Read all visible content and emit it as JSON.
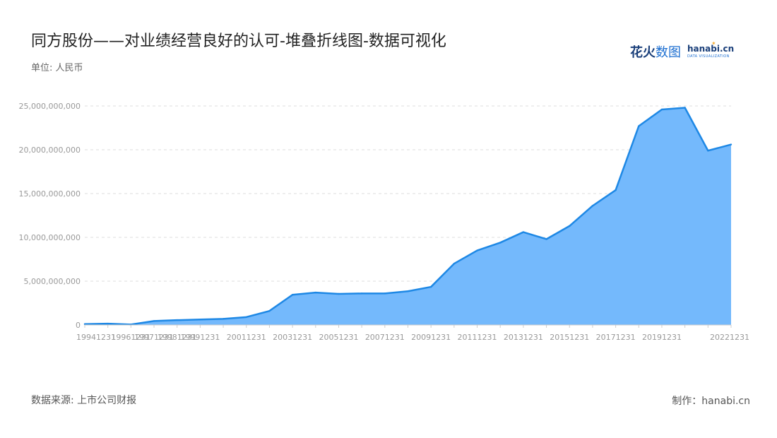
{
  "header": {
    "title": "同方股份——对业绩经营良好的认可-堆叠折线图-数据可视化",
    "unit": "单位: 人民币"
  },
  "logo": {
    "name_cn_bold": "花火",
    "name_cn_light": "数图",
    "name_en": "hanabi.cn",
    "tagline": "DATA VISUALIZATION"
  },
  "footer": {
    "source": "数据来源: 上市公司财报",
    "credit": "制作：hanabi.cn"
  },
  "watermark_text": "花火数图 hanabi.cn",
  "colors": {
    "line": "#1e88e5",
    "area": "#74b9fc",
    "grid": "#dddddd",
    "axis": "#cccccc"
  },
  "chart_data": {
    "type": "area",
    "title": "同方股份——对业绩经营良好的认可-堆叠折线图-数据可视化",
    "ylabel": "单位: 人民币",
    "ylim": [
      0,
      25000000000
    ],
    "yticks": [
      0,
      5000000000,
      10000000000,
      15000000000,
      20000000000,
      25000000000
    ],
    "ytick_labels": [
      "0",
      "5,000,000,000",
      "10,000,000,000",
      "15,000,000,000",
      "20,000,000,000",
      "25,000,000,000"
    ],
    "x": [
      "19941231",
      "19951231",
      "19961231",
      "19971231",
      "19981231",
      "19991231",
      "20001231",
      "20011231",
      "20021231",
      "20031231",
      "20041231",
      "20051231",
      "20061231",
      "20071231",
      "20081231",
      "20091231",
      "20101231",
      "20111231",
      "20121231",
      "20131231",
      "20141231",
      "20151231",
      "20161231",
      "20171231",
      "20181231",
      "20191231",
      "20201231",
      "20211231",
      "20221231"
    ],
    "x_tick_labels": [
      "19941231",
      "19961231",
      "19971231",
      "19981231",
      "19991231",
      "20011231",
      "20031231",
      "20051231",
      "20071231",
      "20091231",
      "20111231",
      "20131231",
      "20151231",
      "20171231",
      "20191231",
      "20221231"
    ],
    "series": [
      {
        "values": [
          100000000,
          150000000,
          50000000,
          450000000,
          550000000,
          620000000,
          700000000,
          900000000,
          1600000000,
          3450000000,
          3700000000,
          3550000000,
          3600000000,
          3600000000,
          3850000000,
          4350000000,
          7000000000,
          8500000000,
          9400000000,
          10600000000,
          9800000000,
          11300000000,
          13600000000,
          15400000000,
          22700000000,
          24600000000,
          24800000000,
          19900000000,
          20600000000
        ]
      }
    ],
    "grid": true,
    "legend": "none"
  }
}
